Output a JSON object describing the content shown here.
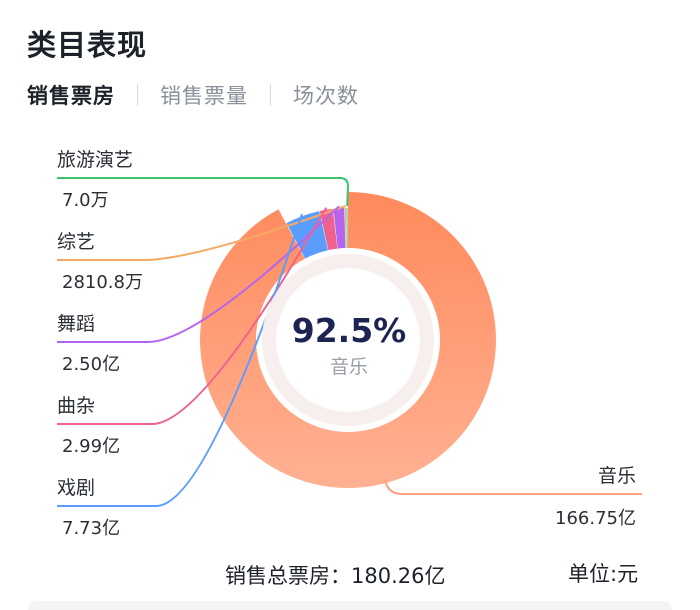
{
  "header": {
    "title": "类目表现"
  },
  "tabs": [
    {
      "label": "销售票房",
      "active": true
    },
    {
      "label": "销售票量",
      "active": false
    },
    {
      "label": "场次数",
      "active": false
    }
  ],
  "chart_data": {
    "type": "pie",
    "variant": "donut",
    "unit_label": "单位",
    "unit": "元",
    "center": {
      "percent": "92.5%",
      "category": "音乐"
    },
    "highlighted": "音乐",
    "slices": [
      {
        "name": "音乐",
        "value": 166.75,
        "label": "166.75亿",
        "color": "#ff8a5c"
      },
      {
        "name": "戏剧",
        "value": 7.73,
        "label": "7.73亿",
        "color": "#5b9cff"
      },
      {
        "name": "曲杂",
        "value": 2.99,
        "label": "2.99亿",
        "color": "#f0628e"
      },
      {
        "name": "舞蹈",
        "value": 2.5,
        "label": "2.50亿",
        "color": "#b564f0"
      },
      {
        "name": "综艺",
        "value": 0.2811,
        "label": "2810.8万",
        "color": "#f5a964"
      },
      {
        "name": "旅游演艺",
        "value": 0.0007,
        "label": "7.0万",
        "color": "#3cc46a"
      }
    ],
    "total": {
      "label": "销售总票房",
      "value": "180.26亿"
    }
  }
}
